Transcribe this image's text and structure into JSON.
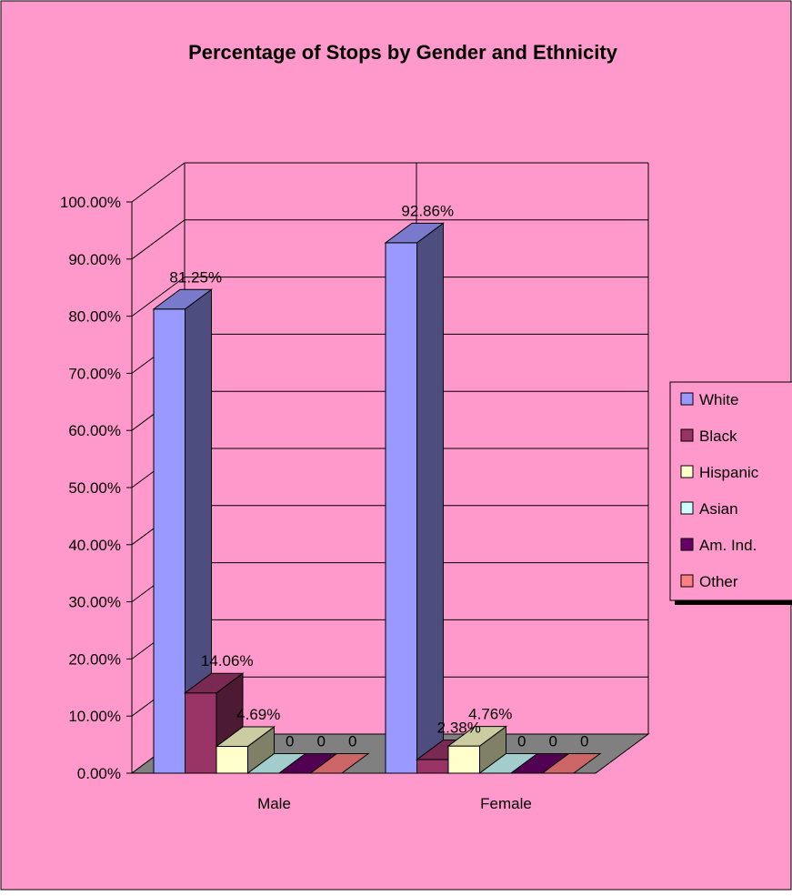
{
  "chart_data": {
    "type": "bar",
    "title": "Percentage of Stops by Gender and Ethnicity",
    "categories": [
      "Male",
      "Female"
    ],
    "ylim": [
      0,
      1
    ],
    "yticks": [
      "0.00%",
      "10.00%",
      "20.00%",
      "30.00%",
      "40.00%",
      "50.00%",
      "60.00%",
      "70.00%",
      "80.00%",
      "90.00%",
      "100.00%"
    ],
    "series": [
      {
        "name": "White",
        "color": "#9999FF",
        "values": [
          0.8125,
          0.9286
        ],
        "labels": [
          "81.25%",
          "92.86%"
        ]
      },
      {
        "name": "Black",
        "color": "#993366",
        "values": [
          0.1406,
          0.0238
        ],
        "labels": [
          "14.06%",
          "2.38%"
        ]
      },
      {
        "name": "Hispanic",
        "color": "#FFFFCC",
        "values": [
          0.0469,
          0.0476
        ],
        "labels": [
          "4.69%",
          "4.76%"
        ]
      },
      {
        "name": "Asian",
        "color": "#CCFFFF",
        "values": [
          0,
          0
        ],
        "labels": [
          "0",
          "0"
        ]
      },
      {
        "name": "Am. Ind.",
        "color": "#660066",
        "values": [
          0,
          0
        ],
        "labels": [
          "0",
          "0"
        ]
      },
      {
        "name": "Other",
        "color": "#FF8080",
        "values": [
          0,
          0
        ],
        "labels": [
          "0",
          "0"
        ]
      }
    ],
    "grid": true,
    "legend": "right",
    "colors": {
      "background": "#FF99CC",
      "floor": "#808080"
    }
  }
}
